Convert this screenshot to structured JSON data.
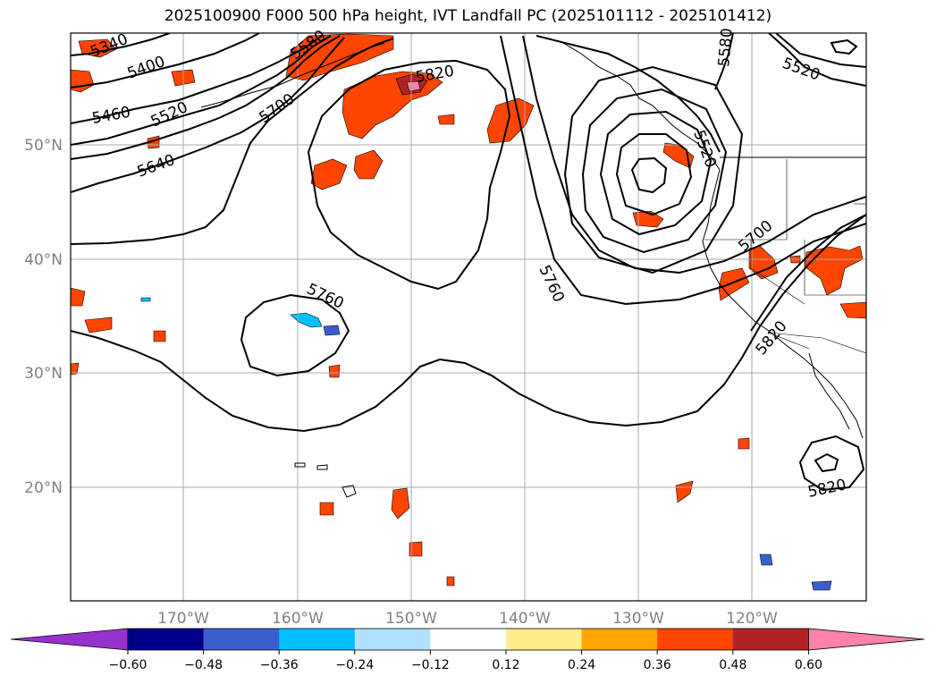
{
  "title": "2025100900 F000 500 hPa height, IVT Landfall PC (2025101112 - 2025101412)",
  "lat_labels": [
    "50°N",
    "40°N",
    "30°N",
    "20°N"
  ],
  "lon_labels": [
    "170°W",
    "160°W",
    "150°W",
    "140°W",
    "130°W",
    "120°W"
  ],
  "contour_labels": [
    "5340",
    "5400",
    "5460",
    "5520",
    "5640",
    "5700",
    "5580",
    "5820",
    "5760",
    "5760",
    "5580",
    "5520",
    "5700",
    "5820",
    "5820",
    "5520"
  ],
  "colorbar": {
    "ticks": [
      "−0.60",
      "−0.48",
      "−0.36",
      "−0.24",
      "−0.12",
      "0.12",
      "0.24",
      "0.36",
      "0.48",
      "0.60"
    ],
    "colors": [
      "#9932cc",
      "#00008b",
      "#3a5fcd",
      "#00bfff",
      "#b0e2ff",
      "#ffffff",
      "#ffec8b",
      "#ffa500",
      "#ff4500",
      "#b22222",
      "#ff82ab"
    ]
  },
  "colors": {
    "positive_mid": "#ff4500",
    "positive_low": "#ffa500",
    "positive_edge": "#ffec8b",
    "positive_high": "#b22222",
    "positive_max": "#ff82ab",
    "negative_low": "#00bfff",
    "negative_mid": "#3a5fcd"
  }
}
